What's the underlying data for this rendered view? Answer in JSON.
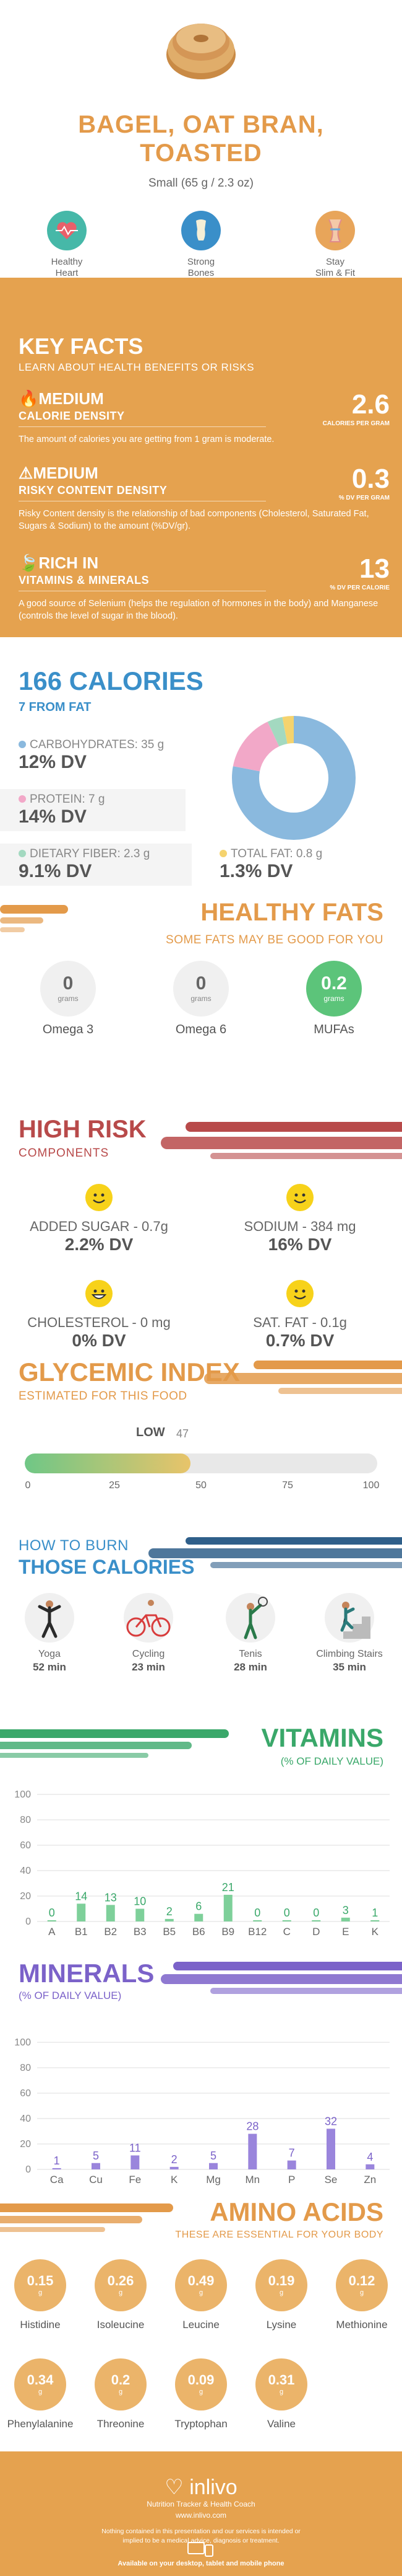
{
  "header": {
    "title_line1": "BAGEL, OAT BRAN,",
    "title_line2": "TOASTED",
    "serving": "Small (65 g / 2.3 oz)",
    "benefits": [
      {
        "label_line1": "Healthy",
        "label_line2": "Heart",
        "icon": "heart-icon"
      },
      {
        "label_line1": "Strong",
        "label_line2": "Bones",
        "icon": "bone-icon"
      },
      {
        "label_line1": "Stay",
        "label_line2": "Slim & Fit",
        "icon": "body-icon"
      }
    ]
  },
  "key_facts": {
    "title": "KEY FACTS",
    "subtitle": "LEARN ABOUT HEALTH BENEFITS OR RISKS",
    "facts": [
      {
        "level": "MEDIUM",
        "label": "CALORIE DENSITY",
        "value": "2.6",
        "unit": "CALORIES PER GRAM",
        "desc": "The amount of calories you are getting from 1 gram is moderate."
      },
      {
        "level": "MEDIUM",
        "label": "RISKY CONTENT DENSITY",
        "value": "0.3",
        "unit": "% DV PER GRAM",
        "desc": "Risky Content density is the relationship of bad components (Cholesterol, Saturated Fat, Sugars & Sodium) to the amount (%DV/gr)."
      },
      {
        "level": "RICH  IN",
        "label": "VITAMINS & MINERALS",
        "value": "13",
        "unit": "% DV PER CALORIE",
        "desc": "A good source of Selenium (helps the regulation of hormones in the body) and Manganese (controls the level of sugar in the blood)."
      }
    ]
  },
  "calories": {
    "title": "166 CALORIES",
    "subtitle": "7 FROM FAT",
    "carbs": {
      "label": "CARBOHYDRATES: 35 g",
      "dv": "12% DV"
    },
    "protein": {
      "label": "PROTEIN: 7 g",
      "dv": "14% DV"
    },
    "fiber": {
      "label": "DIETARY FIBER: 2.3 g",
      "dv": "9.1% DV"
    },
    "fat": {
      "label": "TOTAL FAT: 0.8 g",
      "dv": "1.3% DV"
    },
    "colors": {
      "carbs": "#8ab9de",
      "protein": "#f2a8c8",
      "fiber": "#a3d9c0",
      "fat": "#f5d36e"
    },
    "donut_fractions": [
      0.78,
      0.15,
      0.04,
      0.03
    ]
  },
  "healthy_fats": {
    "title": "HEALTHY FATS",
    "subtitle": "SOME FATS MAY BE GOOD FOR YOU",
    "items": [
      {
        "value": "0",
        "unit": "grams",
        "name": "Omega 3"
      },
      {
        "value": "0",
        "unit": "grams",
        "name": "Omega 6"
      },
      {
        "value": "0.2",
        "unit": "grams",
        "name": "MUFAs"
      }
    ]
  },
  "high_risk": {
    "title": "HIGH RISK",
    "subtitle": "COMPONENTS",
    "items": [
      {
        "label": "ADDED SUGAR - 0.7g",
        "dv": "2.2% DV"
      },
      {
        "label": "SODIUM - 384 mg",
        "dv": "16% DV"
      },
      {
        "label": "CHOLESTEROL - 0 mg",
        "dv": "0% DV"
      },
      {
        "label": "SAT. FAT - 0.1g",
        "dv": "0.7% DV"
      }
    ]
  },
  "glycemic": {
    "title": "GLYCEMIC INDEX",
    "subtitle": "ESTIMATED FOR THIS FOOD",
    "level": "LOW",
    "value": "47",
    "value_num": 47,
    "ticks": [
      "0",
      "25",
      "50",
      "75",
      "100"
    ]
  },
  "burn": {
    "title1": "HOW TO BURN",
    "title2": "THOSE CALORIES",
    "activities": [
      {
        "name": "Yoga",
        "minutes": "52 min",
        "icon": "yoga-icon"
      },
      {
        "name": "Cycling",
        "minutes": "23 min",
        "icon": "cycling-icon"
      },
      {
        "name": "Tenis",
        "minutes": "28 min",
        "icon": "tennis-icon"
      },
      {
        "name": "Climbing Stairs",
        "minutes": "35 min",
        "icon": "stairs-icon"
      }
    ]
  },
  "vitamins": {
    "title": "VITAMINS",
    "subtitle": "(% OF DAILY VALUE)",
    "color": "#7ed09a",
    "labelColor": "#3aa86a"
  },
  "minerals": {
    "title": "MINERALS",
    "subtitle": "(% OF DAILY VALUE)",
    "color": "#9a85dc",
    "labelColor": "#7b62c9"
  },
  "chart_data": [
    {
      "type": "bar",
      "categories": [
        "A",
        "B1",
        "B2",
        "B3",
        "B5",
        "B6",
        "B9",
        "B12",
        "C",
        "D",
        "E",
        "K"
      ],
      "values": [
        0,
        14,
        13,
        10,
        2,
        6,
        21,
        0,
        0,
        0,
        3,
        1
      ],
      "ylim": [
        0,
        100
      ],
      "yticks": [
        "0",
        "20",
        "40",
        "60",
        "80",
        "100"
      ]
    },
    {
      "type": "bar",
      "categories": [
        "Ca",
        "Cu",
        "Fe",
        "K",
        "Mg",
        "Mn",
        "P",
        "Se",
        "Zn"
      ],
      "values": [
        1,
        5,
        11,
        2,
        5,
        28,
        7,
        32,
        4
      ],
      "ylim": [
        0,
        100
      ],
      "yticks": [
        "0",
        "20",
        "40",
        "60",
        "80",
        "100"
      ]
    }
  ],
  "amino": {
    "title": "AMINO ACIDS",
    "subtitle": "THESE ARE ESSENTIAL FOR YOUR BODY",
    "unit": "g",
    "items": [
      {
        "value": "0.15",
        "name": "Histidine"
      },
      {
        "value": "0.26",
        "name": "Isoleucine"
      },
      {
        "value": "0.49",
        "name": "Leucine"
      },
      {
        "value": "0.19",
        "name": "Lysine"
      },
      {
        "value": "0.12",
        "name": "Methionine"
      },
      {
        "value": "0.34",
        "name": "Phenylalanine"
      },
      {
        "value": "0.2",
        "name": "Threonine"
      },
      {
        "value": "0.09",
        "name": "Tryptophan"
      },
      {
        "value": "0.31",
        "name": "Valine"
      }
    ]
  },
  "footer": {
    "brand": "inlivo",
    "tagline": "Nutrition Tracker & Health Coach",
    "url": "www.inlivo.com",
    "note": "Nothing contained in this presentation and our services is intended or implied to be a medical advice, diagnosis or treatment.",
    "available": "Available on your desktop, tablet and mobile phone"
  }
}
